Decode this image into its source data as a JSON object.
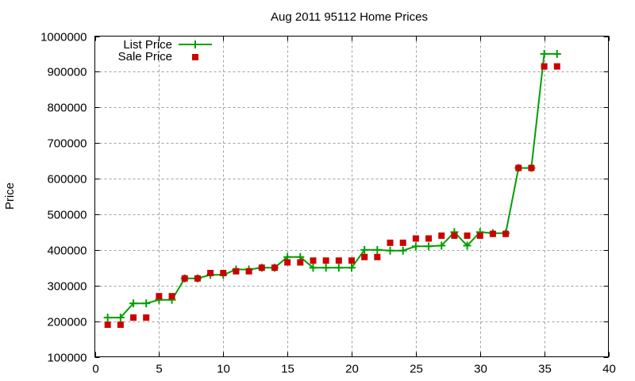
{
  "chart_data": {
    "type": "line",
    "title": "Aug 2011 95112 Home Prices",
    "xlabel": "",
    "ylabel": "Price",
    "xlim": [
      0,
      40
    ],
    "ylim": [
      100000,
      1000000
    ],
    "xticks": [
      0,
      5,
      10,
      15,
      20,
      25,
      30,
      35,
      40
    ],
    "yticks": [
      100000,
      200000,
      300000,
      400000,
      500000,
      600000,
      700000,
      800000,
      900000,
      1000000
    ],
    "grid": true,
    "legend_position": "top-left",
    "x": [
      1,
      2,
      3,
      4,
      5,
      6,
      7,
      8,
      9,
      10,
      11,
      12,
      13,
      14,
      15,
      16,
      17,
      18,
      19,
      20,
      21,
      22,
      23,
      24,
      25,
      26,
      27,
      28,
      29,
      30,
      31,
      32,
      33,
      34,
      35,
      36
    ],
    "series": [
      {
        "name": "List Price",
        "style": "linespoints",
        "marker": "plus",
        "color": "#00a000",
        "values": [
          210000,
          210000,
          250000,
          250000,
          260000,
          260000,
          320000,
          320000,
          330000,
          330000,
          345000,
          345000,
          350000,
          350000,
          380000,
          380000,
          350000,
          350000,
          350000,
          350000,
          400000,
          400000,
          398000,
          398000,
          410000,
          410000,
          412000,
          450000,
          412000,
          450000,
          447000,
          447000,
          630000,
          630000,
          950000,
          950000
        ]
      },
      {
        "name": "Sale Price",
        "style": "points",
        "marker": "square",
        "color": "#cc0000",
        "values": [
          190000,
          190000,
          210000,
          210000,
          270000,
          270000,
          320000,
          320000,
          335000,
          335000,
          340000,
          340000,
          350000,
          350000,
          365000,
          365000,
          370000,
          370000,
          370000,
          370000,
          380000,
          380000,
          420000,
          420000,
          432000,
          432000,
          440000,
          440000,
          440000,
          440000,
          445000,
          445000,
          630000,
          630000,
          915000,
          915000
        ]
      }
    ]
  }
}
